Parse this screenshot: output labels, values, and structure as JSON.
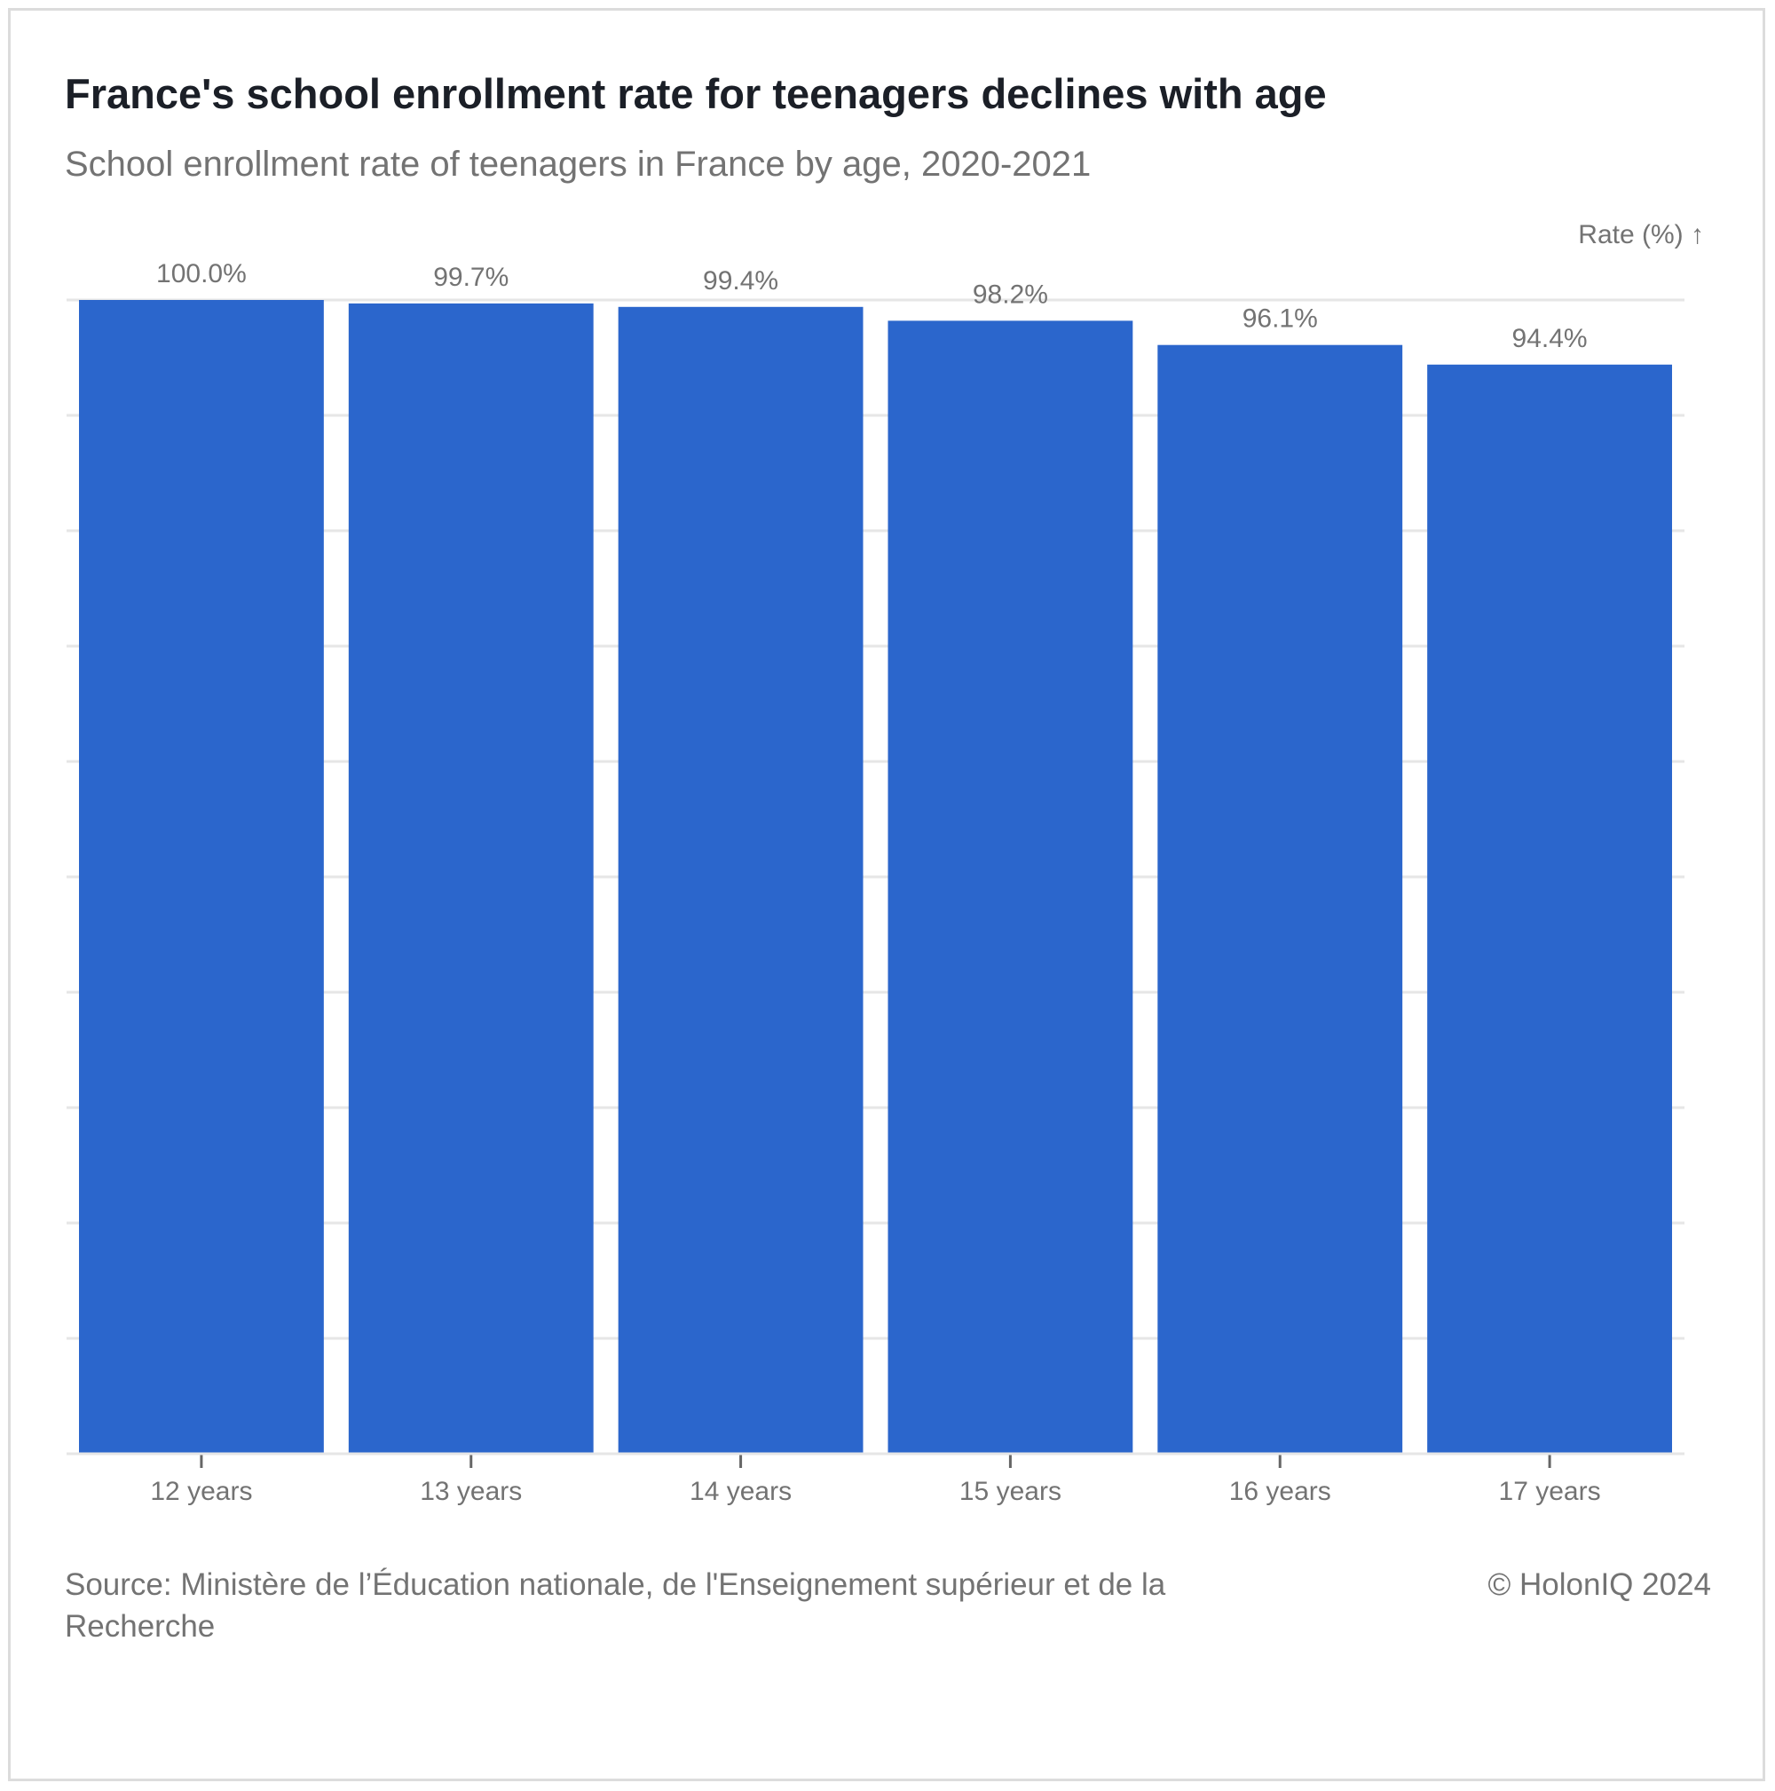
{
  "header": {
    "title": "France's school enrollment rate for teenagers declines with age",
    "subtitle": "School enrollment rate of teenagers in France by age, 2020-2021"
  },
  "footer": {
    "source": "Source: Ministère de l’Éducation nationale, de l'Enseignement supérieur et de la Recherche",
    "copyright": "© HolonIQ 2024"
  },
  "colors": {
    "bar": "#2b66cc",
    "grid": "#e6e6e6",
    "text_muted": "#737373"
  },
  "chart_data": {
    "type": "bar",
    "title": "France's school enrollment rate for teenagers declines with age",
    "subtitle": "School enrollment rate of teenagers in France by age, 2020-2021",
    "ylabel": "Rate (%) ↑",
    "xlabel": "",
    "categories": [
      "12 years",
      "13 years",
      "14 years",
      "15 years",
      "16 years",
      "17 years"
    ],
    "values": [
      100.0,
      99.7,
      99.4,
      98.2,
      96.1,
      94.4
    ],
    "value_labels": [
      "100.0%",
      "99.7%",
      "99.4%",
      "98.2%",
      "96.1%",
      "94.4%"
    ],
    "ylim": [
      0,
      100
    ],
    "gridlines": [
      0,
      10,
      20,
      30,
      40,
      50,
      60,
      70,
      80,
      90,
      100
    ],
    "grid": true,
    "legend": "none"
  }
}
